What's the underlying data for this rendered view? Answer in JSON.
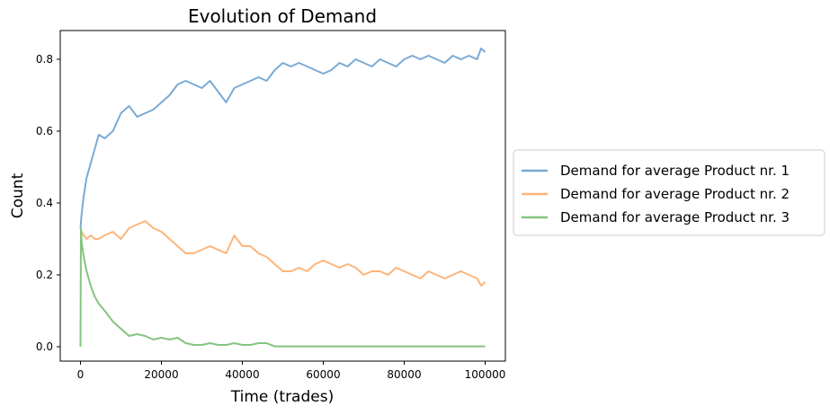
{
  "chart_data": {
    "type": "line",
    "title": "Evolution of Demand",
    "xlabel": "Time (trades)",
    "ylabel": "Count",
    "xlim": [
      -5000,
      105000
    ],
    "ylim": [
      -0.04,
      0.88
    ],
    "xticks": [
      0,
      20000,
      40000,
      60000,
      80000,
      100000
    ],
    "xtick_labels": [
      "0",
      "20000",
      "40000",
      "60000",
      "80000",
      "100000"
    ],
    "yticks": [
      0.0,
      0.2,
      0.4,
      0.6,
      0.8
    ],
    "ytick_labels": [
      "0.0",
      "0.2",
      "0.4",
      "0.6",
      "0.8"
    ],
    "grid": false,
    "legend_position": "outside-right",
    "series": [
      {
        "name": "Demand for average Product nr. 1",
        "color": "#7aaad3",
        "x": [
          0,
          300,
          800,
          1500,
          2500,
          3500,
          4500,
          6000,
          8000,
          10000,
          12000,
          14000,
          16000,
          18000,
          20000,
          22000,
          24000,
          26000,
          28000,
          30000,
          32000,
          34000,
          36000,
          38000,
          40000,
          42000,
          44000,
          46000,
          48000,
          50000,
          52000,
          54000,
          56000,
          58000,
          60000,
          62000,
          64000,
          66000,
          68000,
          70000,
          72000,
          74000,
          76000,
          78000,
          80000,
          82000,
          84000,
          86000,
          88000,
          90000,
          92000,
          94000,
          96000,
          98000,
          99000,
          100000
        ],
        "y": [
          0.33,
          0.37,
          0.42,
          0.47,
          0.51,
          0.55,
          0.59,
          0.58,
          0.6,
          0.65,
          0.67,
          0.64,
          0.65,
          0.66,
          0.68,
          0.7,
          0.73,
          0.74,
          0.73,
          0.72,
          0.74,
          0.71,
          0.68,
          0.72,
          0.73,
          0.74,
          0.75,
          0.74,
          0.77,
          0.79,
          0.78,
          0.79,
          0.78,
          0.77,
          0.76,
          0.77,
          0.79,
          0.78,
          0.8,
          0.79,
          0.78,
          0.8,
          0.79,
          0.78,
          0.8,
          0.81,
          0.8,
          0.81,
          0.8,
          0.79,
          0.81,
          0.8,
          0.81,
          0.8,
          0.83,
          0.82
        ]
      },
      {
        "name": "Demand for average Product nr. 2",
        "color": "#fdb57a",
        "x": [
          0,
          300,
          800,
          1500,
          2500,
          3500,
          4500,
          6000,
          8000,
          10000,
          12000,
          14000,
          16000,
          18000,
          20000,
          22000,
          24000,
          26000,
          28000,
          30000,
          32000,
          34000,
          36000,
          38000,
          40000,
          42000,
          44000,
          46000,
          48000,
          50000,
          52000,
          54000,
          56000,
          58000,
          60000,
          62000,
          64000,
          66000,
          68000,
          70000,
          72000,
          74000,
          76000,
          78000,
          80000,
          82000,
          84000,
          86000,
          88000,
          90000,
          92000,
          94000,
          96000,
          98000,
          99000,
          100000
        ],
        "y": [
          0.33,
          0.32,
          0.31,
          0.3,
          0.31,
          0.3,
          0.3,
          0.31,
          0.32,
          0.3,
          0.33,
          0.34,
          0.35,
          0.33,
          0.32,
          0.3,
          0.28,
          0.26,
          0.26,
          0.27,
          0.28,
          0.27,
          0.26,
          0.31,
          0.28,
          0.28,
          0.26,
          0.25,
          0.23,
          0.21,
          0.21,
          0.22,
          0.21,
          0.23,
          0.24,
          0.23,
          0.22,
          0.23,
          0.22,
          0.2,
          0.21,
          0.21,
          0.2,
          0.22,
          0.21,
          0.2,
          0.19,
          0.21,
          0.2,
          0.19,
          0.2,
          0.21,
          0.2,
          0.19,
          0.17,
          0.18
        ]
      },
      {
        "name": "Demand for average Product nr. 3",
        "color": "#84c47f",
        "x": [
          0,
          100,
          300,
          800,
          1500,
          2500,
          3500,
          4500,
          6000,
          8000,
          10000,
          12000,
          14000,
          16000,
          18000,
          20000,
          22000,
          24000,
          26000,
          28000,
          30000,
          32000,
          34000,
          36000,
          38000,
          40000,
          42000,
          44000,
          46000,
          48000,
          50000,
          60000,
          70000,
          80000,
          90000,
          100000
        ],
        "y": [
          0.0,
          0.33,
          0.29,
          0.25,
          0.21,
          0.17,
          0.14,
          0.12,
          0.1,
          0.07,
          0.05,
          0.03,
          0.035,
          0.03,
          0.02,
          0.025,
          0.02,
          0.025,
          0.01,
          0.005,
          0.005,
          0.01,
          0.005,
          0.005,
          0.01,
          0.005,
          0.005,
          0.01,
          0.01,
          0.001,
          0.001,
          0.001,
          0.001,
          0.001,
          0.001,
          0.001
        ]
      }
    ]
  }
}
